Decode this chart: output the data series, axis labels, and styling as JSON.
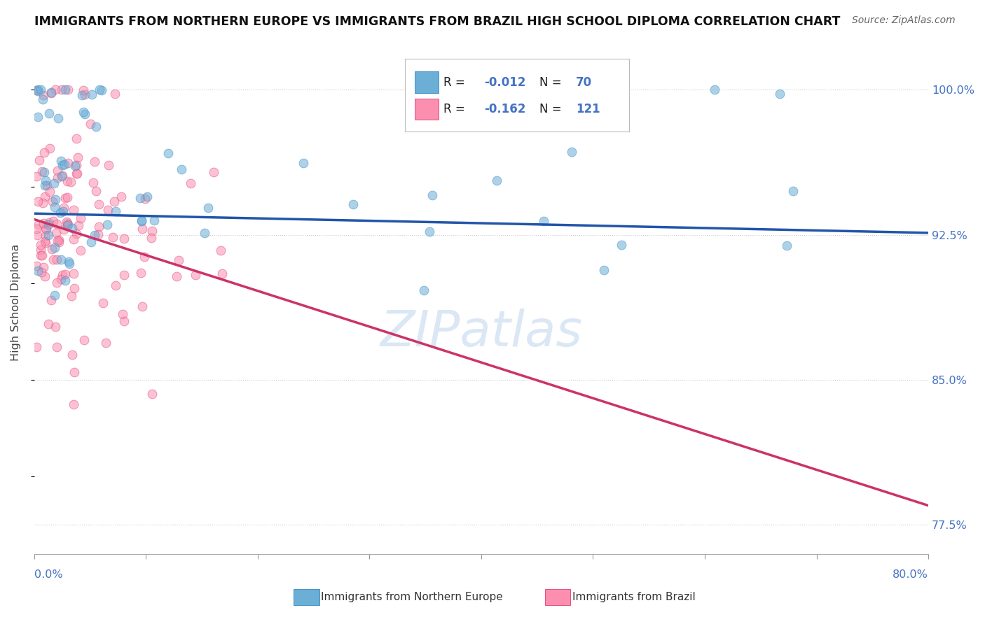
{
  "title": "IMMIGRANTS FROM NORTHERN EUROPE VS IMMIGRANTS FROM BRAZIL HIGH SCHOOL DIPLOMA CORRELATION CHART",
  "source": "Source: ZipAtlas.com",
  "ylabel": "High School Diploma",
  "xlim": [
    0.0,
    80.0
  ],
  "ylim": [
    76.0,
    102.0
  ],
  "ytick_labels": [
    "100.0%",
    "92.5%",
    "85.0%",
    "77.5%"
  ],
  "ytick_vals": [
    100.0,
    92.5,
    85.0,
    77.5
  ],
  "blue_color": "#6baed6",
  "blue_edge": "#4292c6",
  "pink_color": "#fc8faf",
  "pink_edge": "#e05080",
  "blue_trend_color": "#2255aa",
  "pink_trend_color": "#cc3366",
  "gray_dash_color": "#cccccc",
  "watermark_color": "#ccddf0",
  "background_color": "#ffffff",
  "dot_alpha": 0.55,
  "dot_size": 85,
  "blue_R": "-0.012",
  "blue_N": "70",
  "pink_R": "-0.162",
  "pink_N": "121",
  "blue_trend_x0": 0.0,
  "blue_trend_y0": 93.6,
  "blue_trend_x1": 80.0,
  "blue_trend_y1": 92.6,
  "pink_trend_x0": 0.0,
  "pink_trend_y0": 93.3,
  "pink_trend_x1": 80.0,
  "pink_trend_y1": 78.5,
  "gray_dash_x0": 0.0,
  "gray_dash_y0": 93.3,
  "gray_dash_x1": 80.0,
  "gray_dash_y1": 78.5
}
